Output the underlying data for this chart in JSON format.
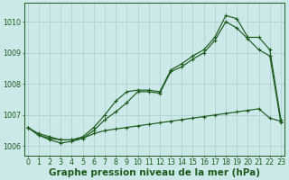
{
  "title": "Graphe pression niveau de la mer (hPa)",
  "xlabel_hours": [
    0,
    1,
    2,
    3,
    4,
    5,
    6,
    7,
    8,
    9,
    10,
    11,
    12,
    13,
    14,
    15,
    16,
    17,
    18,
    19,
    20,
    21,
    22,
    23
  ],
  "series_top": [
    1006.6,
    1006.4,
    1006.3,
    1006.2,
    1006.2,
    1006.3,
    1006.6,
    1007.0,
    1007.45,
    1007.75,
    1007.8,
    1007.8,
    1007.75,
    1008.45,
    1008.65,
    1008.9,
    1009.1,
    1009.5,
    1010.2,
    1010.1,
    1009.5,
    1009.5,
    1009.1,
    1006.85
  ],
  "series_mid": [
    1006.6,
    1006.35,
    1006.2,
    1006.1,
    1006.15,
    1006.25,
    1006.5,
    1006.85,
    1007.1,
    1007.4,
    1007.75,
    1007.75,
    1007.7,
    1008.4,
    1008.55,
    1008.8,
    1009.0,
    1009.4,
    1010.0,
    1009.8,
    1009.45,
    1009.1,
    1008.9,
    1006.75
  ],
  "series_bot": [
    1006.6,
    1006.35,
    1006.25,
    1006.2,
    1006.2,
    1006.25,
    1006.4,
    1006.5,
    1006.55,
    1006.6,
    1006.65,
    1006.7,
    1006.75,
    1006.8,
    1006.85,
    1006.9,
    1006.95,
    1007.0,
    1007.05,
    1007.1,
    1007.15,
    1007.2,
    1006.9,
    1006.8
  ],
  "line_color": "#1a5c1a",
  "marker": "+",
  "bg_color": "#cce8e8",
  "grid_color": "#aacfcf",
  "axis_color": "#1a5c1a",
  "ylim_min": 1005.7,
  "ylim_max": 1010.6,
  "yticks": [
    1006,
    1007,
    1008,
    1009,
    1010
  ],
  "title_fontsize": 7.5,
  "tick_fontsize": 5.8
}
